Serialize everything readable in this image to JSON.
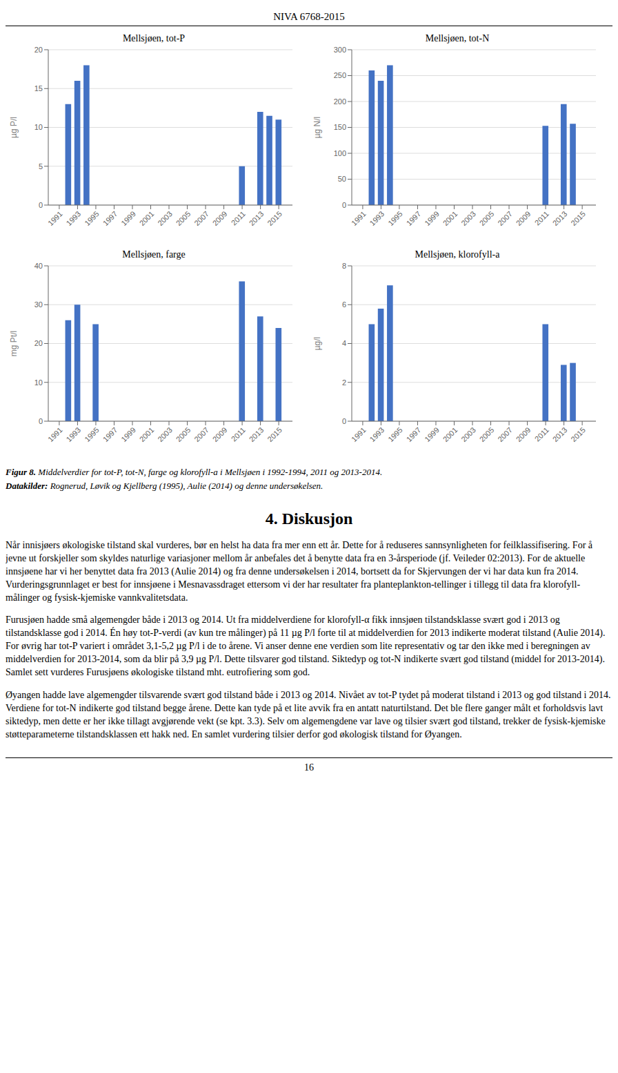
{
  "page_title": "NIVA 6768-2015",
  "page_number": "16",
  "chart_data": [
    {
      "type": "bar",
      "title": "Mellsjøen, tot-P",
      "ylabel": "µg P/l",
      "x": [
        1991,
        1992,
        1993,
        1994,
        1995,
        1996,
        1997,
        1998,
        1999,
        2000,
        2001,
        2002,
        2003,
        2004,
        2005,
        2006,
        2007,
        2008,
        2009,
        2010,
        2011,
        2012,
        2013,
        2014,
        2015
      ],
      "values": [
        0,
        13,
        16,
        18,
        0,
        0,
        0,
        0,
        0,
        0,
        0,
        0,
        0,
        0,
        0,
        0,
        0,
        0,
        0,
        0,
        5,
        0,
        12,
        11.5,
        11
      ],
      "color": "#4472C4",
      "xlim": [
        1989.8,
        2016.5
      ],
      "xticks": [
        1991,
        1993,
        1995,
        1997,
        1999,
        2001,
        2003,
        2005,
        2007,
        2009,
        2011,
        2013,
        2015
      ],
      "ylim": [
        0,
        20
      ],
      "yticks": [
        0,
        5,
        10,
        15,
        20
      ],
      "grid": true
    },
    {
      "type": "bar",
      "title": "Mellsjøen, tot-N",
      "ylabel": "µg N/l",
      "x": [
        1991,
        1992,
        1993,
        1994,
        1995,
        1996,
        1997,
        1998,
        1999,
        2000,
        2001,
        2002,
        2003,
        2004,
        2005,
        2006,
        2007,
        2008,
        2009,
        2010,
        2011,
        2012,
        2013,
        2014,
        2015
      ],
      "values": [
        0,
        260,
        240,
        270,
        0,
        0,
        0,
        0,
        0,
        0,
        0,
        0,
        0,
        0,
        0,
        0,
        0,
        0,
        0,
        0,
        153,
        0,
        195,
        157,
        0
      ],
      "color": "#4472C4",
      "xlim": [
        1989.8,
        2016.5
      ],
      "xticks": [
        1991,
        1993,
        1995,
        1997,
        1999,
        2001,
        2003,
        2005,
        2007,
        2009,
        2011,
        2013,
        2015
      ],
      "ylim": [
        0,
        300
      ],
      "yticks": [
        0,
        50,
        100,
        150,
        200,
        250,
        300
      ],
      "grid": true
    },
    {
      "type": "bar",
      "title": "Mellsjøen, farge",
      "ylabel": "mg Pt/l",
      "x": [
        1991,
        1992,
        1993,
        1994,
        1995,
        1996,
        1997,
        1998,
        1999,
        2000,
        2001,
        2002,
        2003,
        2004,
        2005,
        2006,
        2007,
        2008,
        2009,
        2010,
        2011,
        2012,
        2013,
        2014,
        2015
      ],
      "values": [
        0,
        26,
        30,
        0,
        25,
        0,
        0,
        0,
        0,
        0,
        0,
        0,
        0,
        0,
        0,
        0,
        0,
        0,
        0,
        0,
        36,
        0,
        27,
        0,
        24
      ],
      "color": "#4472C4",
      "xlim": [
        1989.8,
        2016.5
      ],
      "xticks": [
        1991,
        1993,
        1995,
        1997,
        1999,
        2001,
        2003,
        2005,
        2007,
        2009,
        2011,
        2013,
        2015
      ],
      "ylim": [
        0,
        40
      ],
      "yticks": [
        0,
        10,
        20,
        30,
        40
      ],
      "grid": true
    },
    {
      "type": "bar",
      "title": "Mellsjøen, klorofyll-a",
      "ylabel": "µg/l",
      "x": [
        1991,
        1992,
        1993,
        1994,
        1995,
        1996,
        1997,
        1998,
        1999,
        2000,
        2001,
        2002,
        2003,
        2004,
        2005,
        2006,
        2007,
        2008,
        2009,
        2010,
        2011,
        2012,
        2013,
        2014,
        2015
      ],
      "values": [
        0,
        5,
        5.8,
        7,
        0,
        0,
        0,
        0,
        0,
        0,
        0,
        0,
        0,
        0,
        0,
        0,
        0,
        0,
        0,
        0,
        5,
        0,
        2.9,
        3.0,
        0
      ],
      "color": "#4472C4",
      "xlim": [
        1989.8,
        2016.5
      ],
      "xticks": [
        1991,
        1993,
        1995,
        1997,
        1999,
        2001,
        2003,
        2005,
        2007,
        2009,
        2011,
        2013,
        2015
      ],
      "ylim": [
        0,
        8
      ],
      "yticks": [
        0,
        2,
        4,
        6,
        8
      ],
      "grid": true
    }
  ],
  "figure_caption_bold": "Figur 8.",
  "figure_caption_italic": "  Middelverdier for tot-P, tot-N, farge og klorofyll-a i Mellsjøen i 1992-1994, 2011 og 2013-2014.",
  "datasource_bold": "Datakilder:",
  "datasource_italic": " Rognerud, Løvik og Kjellberg (1995), Aulie (2014) og denne undersøkelsen.",
  "section_title": "4. Diskusjon",
  "paragraphs": [
    "Når innisjøers økologiske tilstand skal vurderes, bør en helst ha data fra mer enn ett år. Dette for å reduseres sannsynligheten for feilklassifisering. For å jevne ut forskjeller som skyldes naturlige variasjoner mellom år anbefales det å benytte data fra en 3-årsperiode (jf. Veileder 02:2013). For de aktuelle innsjøene har vi her benyttet data fra 2013 (Aulie 2014) og fra denne undersøkelsen i 2014, bortsett da for Skjervungen der vi har data kun fra 2014. Vurderingsgrunnlaget er best for innsjøene i Mesnavassdraget ettersom vi der har resultater fra planteplankton-tellinger i tillegg til data fra klorofyll-målinger og fysisk-kjemiske vannkvalitetsdata.",
    "Furusjøen hadde små algemengder både i 2013 og 2014. Ut fra middelverdiene for klorofyll-α fikk innsjøen tilstandsklasse svært god i 2013 og tilstandsklasse god i 2014. Én høy tot-P-verdi (av kun tre målinger) på 11 µg P/l forte til at middelverdien for 2013 indikerte moderat tilstand (Aulie 2014). For øvrig har tot-P variert i området 3,1-5,2 µg P/l i de to årene. Vi anser denne ene verdien som lite representativ og tar den ikke med i beregningen av middelverdien for 2013-2014, som da blir på 3,9 µg P/l. Dette tilsvarer god tilstand. Siktedyp og tot-N indikerte svært god tilstand (middel for 2013-2014). Samlet sett vurderes Furusjøens økologiske tilstand mht. eutrofiering som god.",
    "Øyangen hadde lave algemengder tilsvarende svært god tilstand både i 2013 og 2014. Nivået av tot-P tydet på moderat tilstand i 2013 og god tilstand i 2014. Verdiene for tot-N indikerte god tilstand begge årene. Dette kan tyde på et lite avvik fra en antatt naturtilstand. Det ble flere ganger målt et forholdsvis lavt siktedyp, men dette er her ikke tillagt avgjørende vekt (se kpt. 3.3). Selv om algemengdene var lave og tilsier svært god tilstand, trekker de fysisk-kjemiske støtteparameterne tilstandsklassen ett hakk ned. En samlet vurdering tilsier derfor god økologisk tilstand for Øyangen."
  ]
}
